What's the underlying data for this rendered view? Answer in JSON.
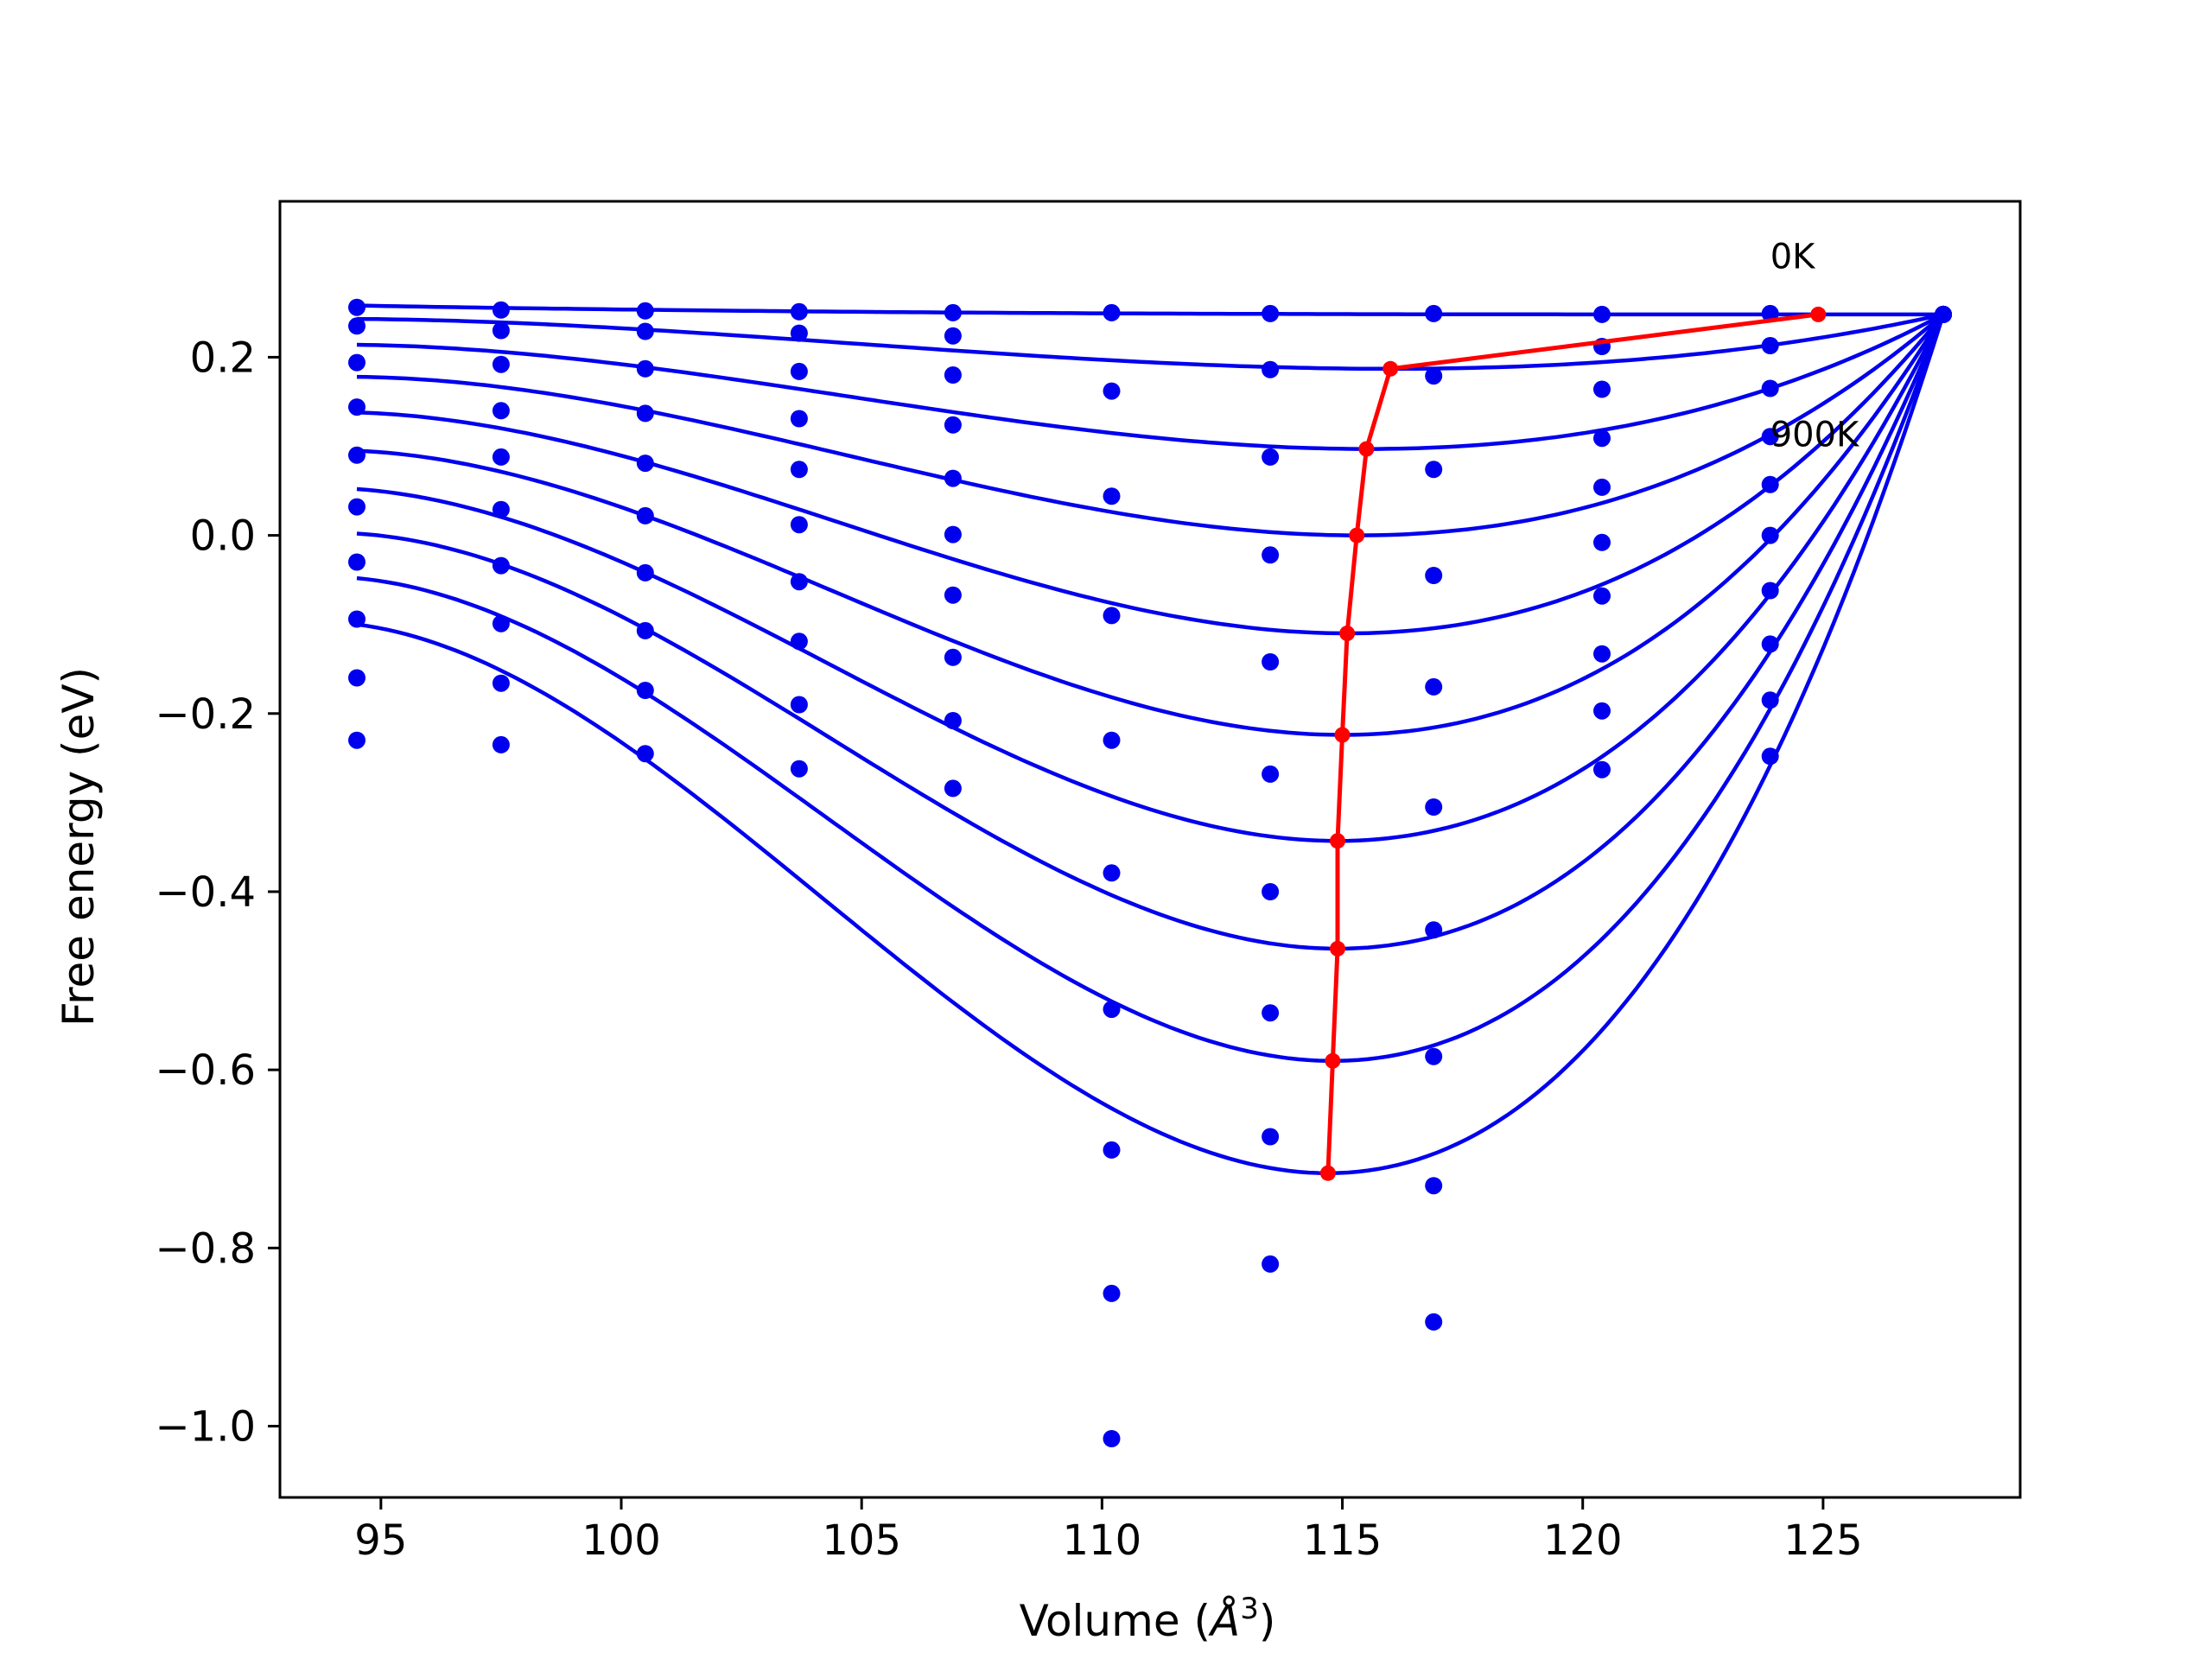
{
  "chart_data": {
    "type": "scatter",
    "title": "",
    "xlabel_prefix": "Volume (",
    "xlabel_symbol": "Å",
    "xlabel_exp": "3",
    "xlabel_suffix": ")",
    "ylabel": "Free energy (eV)",
    "xlim": [
      92.9,
      129.1
    ],
    "ylim": [
      -1.08,
      0.375
    ],
    "xticks": [
      95,
      100,
      105,
      110,
      115,
      120,
      125
    ],
    "xtick_labels": [
      "95",
      "100",
      "105",
      "110",
      "115",
      "120",
      "125"
    ],
    "yticks": [
      0.2,
      0.0,
      -0.2,
      -0.4,
      -0.6,
      -0.8,
      -1.0
    ],
    "ytick_labels": [
      "0.2",
      "0.0",
      "−0.2",
      "−0.4",
      "−0.6",
      "−0.8",
      "−1.0"
    ],
    "grid": false,
    "colors": {
      "points": "#0000ee",
      "fits": "#0000ee",
      "equilibrium": "#ff0000"
    },
    "annotations": [
      {
        "text": "0K",
        "x": 123.9,
        "y": 0.3
      },
      {
        "text": "900K",
        "x": 123.9,
        "y": 0.1
      }
    ],
    "x": [
      94.5,
      97.5,
      100.5,
      103.7,
      106.9,
      110.2,
      113.5,
      116.9,
      120.4,
      123.9,
      127.5
    ],
    "series": [
      {
        "values": [
          0.256,
          0.253,
          0.252,
          0.251,
          0.25,
          0.25,
          0.249,
          0.249,
          0.248,
          0.249,
          0.248
        ]
      },
      {
        "values": [
          0.235,
          0.23,
          0.229,
          0.227,
          0.224,
          0.162,
          0.186,
          0.179,
          0.212,
          0.213,
          0.248
        ]
      },
      {
        "values": [
          0.194,
          0.192,
          0.187,
          0.184,
          0.18,
          0.044,
          0.088,
          0.074,
          0.164,
          0.165,
          0.248
        ]
      },
      {
        "values": [
          0.144,
          0.14,
          0.137,
          0.131,
          0.124,
          -0.09,
          -0.022,
          -0.045,
          0.109,
          0.111,
          0.248
        ]
      },
      {
        "values": [
          0.09,
          0.088,
          0.081,
          0.074,
          0.064,
          -0.23,
          -0.142,
          -0.17,
          0.054,
          0.057,
          0.248
        ]
      },
      {
        "values": [
          0.032,
          0.029,
          0.022,
          0.012,
          0.001,
          -0.379,
          -0.268,
          -0.305,
          -0.008,
          0.0,
          0.248
        ]
      },
      {
        "values": [
          -0.03,
          -0.034,
          -0.042,
          -0.052,
          -0.067,
          -0.532,
          -0.4,
          -0.443,
          -0.068,
          -0.062,
          0.248
        ]
      },
      {
        "values": [
          -0.094,
          -0.099,
          -0.107,
          -0.119,
          -0.137,
          -0.69,
          -0.536,
          -0.585,
          -0.133,
          -0.122,
          0.248
        ]
      },
      {
        "values": [
          -0.16,
          -0.166,
          -0.174,
          -0.19,
          -0.208,
          -0.851,
          -0.675,
          -0.73,
          -0.197,
          -0.185,
          0.248
        ]
      },
      {
        "values": [
          -0.23,
          -0.235,
          -0.245,
          -0.262,
          -0.284,
          -1.014,
          -0.818,
          -0.883,
          -0.263,
          -0.248,
          0.248
        ]
      }
    ],
    "fits": [
      {
        "v0": 127.5,
        "f0": 0.248,
        "vmin": 124.9,
        "fmin": 0.248
      },
      {
        "v0": 127.5,
        "f0": 0.248,
        "vmin": 116.0,
        "fmin": 0.187
      },
      {
        "v0": 127.5,
        "f0": 0.248,
        "vmin": 115.5,
        "fmin": 0.097
      },
      {
        "v0": 127.5,
        "f0": 0.248,
        "vmin": 115.3,
        "fmin": 0.0
      },
      {
        "v0": 127.5,
        "f0": 0.248,
        "vmin": 115.1,
        "fmin": -0.11
      },
      {
        "v0": 127.5,
        "f0": 0.248,
        "vmin": 115.0,
        "fmin": -0.224
      },
      {
        "v0": 127.5,
        "f0": 0.248,
        "vmin": 114.9,
        "fmin": -0.343
      },
      {
        "v0": 127.5,
        "f0": 0.248,
        "vmin": 114.9,
        "fmin": -0.464
      },
      {
        "v0": 127.5,
        "f0": 0.248,
        "vmin": 114.8,
        "fmin": -0.59
      },
      {
        "v0": 127.5,
        "f0": 0.248,
        "vmin": 114.7,
        "fmin": -0.716
      }
    ],
    "fit_starts": [
      {
        "x": 94.5,
        "y": 0.258
      },
      {
        "x": 94.5,
        "y": 0.243
      },
      {
        "x": 94.5,
        "y": 0.214
      },
      {
        "x": 94.5,
        "y": 0.178
      },
      {
        "x": 94.5,
        "y": 0.138
      },
      {
        "x": 94.5,
        "y": 0.095
      },
      {
        "x": 94.5,
        "y": 0.052
      },
      {
        "x": 94.5,
        "y": 0.002
      },
      {
        "x": 94.5,
        "y": -0.048
      },
      {
        "x": 94.5,
        "y": -0.1
      }
    ],
    "equilibrium": {
      "x": [
        124.9,
        116.0,
        115.5,
        115.3,
        115.1,
        115.0,
        114.9,
        114.9,
        114.8,
        114.7
      ],
      "y": [
        0.248,
        0.187,
        0.097,
        0.0,
        -0.11,
        -0.224,
        -0.343,
        -0.464,
        -0.59,
        -0.716
      ]
    }
  }
}
